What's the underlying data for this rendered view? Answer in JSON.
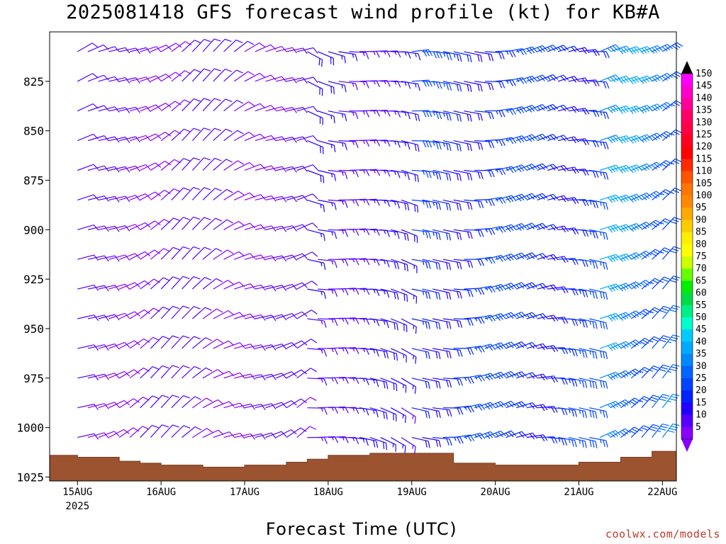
{
  "chart_data": {
    "type": "wind-barb time-height plot",
    "title": "2025081418 GFS forecast wind profile (kt) for KB#A",
    "xlabel": "Forecast Time (UTC)",
    "ylabel": "",
    "x_ticks": [
      "15AUG",
      "16AUG",
      "17AUG",
      "18AUG",
      "19AUG",
      "20AUG",
      "21AUG",
      "22AUG"
    ],
    "x_year_label": "2025",
    "y_ticks": [
      825,
      850,
      875,
      900,
      925,
      950,
      975,
      1000,
      1025
    ],
    "y_range_hPa": [
      800,
      1027
    ],
    "x_range_hours": [
      -8,
      172
    ],
    "barb_levels_hPa": [
      810,
      825,
      840,
      855,
      870,
      885,
      900,
      915,
      930,
      945,
      960,
      975,
      990,
      1005,
      1020
    ],
    "barb_interval_hours": 3,
    "wind_field_estimate": [
      {
        "from_hour": 0,
        "to_hour": 66,
        "direction_deg": 240,
        "speed_kt": [
          8,
          12
        ]
      },
      {
        "from_hour": 66,
        "to_hour": 96,
        "direction_deg": 285,
        "speed_kt": [
          12,
          18
        ]
      },
      {
        "from_hour": 96,
        "to_hour": 150,
        "direction_deg": 265,
        "speed_kt": [
          18,
          28
        ]
      },
      {
        "from_hour": 150,
        "to_hour": 172,
        "direction_deg": 235,
        "speed_kt": [
          25,
          42
        ]
      }
    ],
    "surface_pressure_hPa": [
      [
        -8,
        1014
      ],
      [
        0,
        1015
      ],
      [
        9,
        1015
      ],
      [
        12,
        1017
      ],
      [
        18,
        1018
      ],
      [
        24,
        1019
      ],
      [
        36,
        1020
      ],
      [
        48,
        1019
      ],
      [
        60,
        1017.5
      ],
      [
        66,
        1016
      ],
      [
        72,
        1014
      ],
      [
        84,
        1013
      ],
      [
        96,
        1013
      ],
      [
        108,
        1018
      ],
      [
        120,
        1019
      ],
      [
        132,
        1019
      ],
      [
        144,
        1017.5
      ],
      [
        156,
        1015
      ],
      [
        165,
        1012
      ],
      [
        172,
        1012
      ]
    ],
    "colorbar": {
      "labels": [
        150,
        145,
        140,
        135,
        130,
        125,
        120,
        115,
        110,
        105,
        100,
        95,
        90,
        85,
        80,
        75,
        70,
        65,
        60,
        55,
        50,
        45,
        40,
        35,
        30,
        25,
        20,
        15,
        10,
        5
      ],
      "colors": [
        "#ff00ff",
        "#ff00cc",
        "#ff0099",
        "#ff0066",
        "#ff0044",
        "#ff0022",
        "#ff0000",
        "#ff2a00",
        "#ff5500",
        "#ff7700",
        "#ff8800",
        "#ffaa00",
        "#ffcc00",
        "#ffee00",
        "#ffff00",
        "#ccff00",
        "#66ff00",
        "#00ee00",
        "#00dd44",
        "#00ee88",
        "#00ffcc",
        "#00ccff",
        "#00aaff",
        "#0088ff",
        "#0066ff",
        "#0044ff",
        "#0022ff",
        "#2200ff",
        "#5500ff",
        "#8800ff"
      ]
    }
  },
  "credit": "coolwx.com/models"
}
